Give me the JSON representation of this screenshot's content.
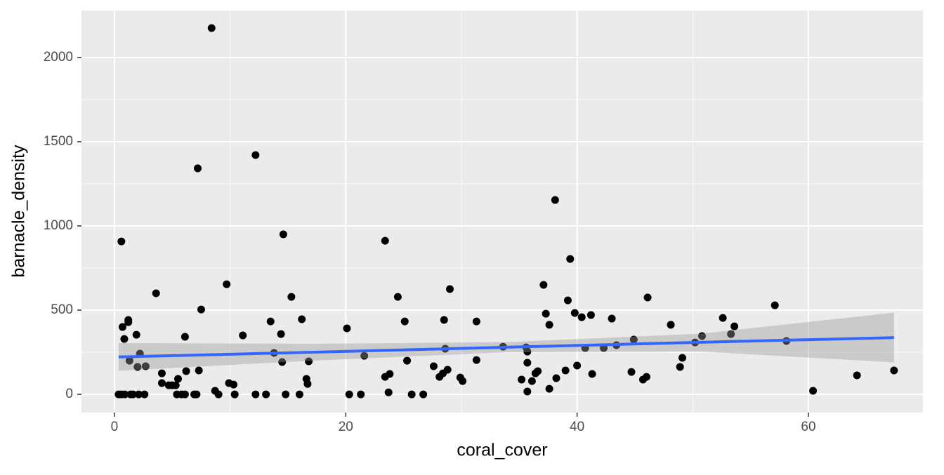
{
  "chart_data": {
    "type": "scatter",
    "x_label": "coral_cover",
    "y_label": "barnacle_density",
    "xlim": [
      -2.85,
      69.9
    ],
    "ylim": [
      -108,
      2279
    ],
    "xticks": [
      0,
      20,
      40,
      60
    ],
    "yticks": [
      0,
      500,
      1000,
      1500,
      2000
    ],
    "xminor": [
      10,
      30,
      50
    ],
    "yminor": [
      250,
      750,
      1250,
      1750
    ],
    "grid": true,
    "color": "#000000",
    "x": [
      0.36,
      0.6,
      0.9,
      1.4,
      1.6,
      2.1,
      2.6,
      0.6,
      0.7,
      0.85,
      1.2,
      1.2,
      1.3,
      1.9,
      2.0,
      2.2,
      2.7,
      3.6,
      4.1,
      4.1,
      4.7,
      5.0,
      5.3,
      5.5,
      5.4,
      5.8,
      6.1,
      6.1,
      6.2,
      6.9,
      7.1,
      7.2,
      7.3,
      7.5,
      8.4,
      8.7,
      9.0,
      9.7,
      9.9,
      10.3,
      10.4,
      11.1,
      12.2,
      12.2,
      13.1,
      13.5,
      13.8,
      14.4,
      14.6,
      14.5,
      14.8,
      15.3,
      16.0,
      16.2,
      16.6,
      16.7,
      16.8,
      20.1,
      20.3,
      21.3,
      21.6,
      23.4,
      23.4,
      23.8,
      23.7,
      24.5,
      25.1,
      25.3,
      25.7,
      26.7,
      27.6,
      28.1,
      28.4,
      28.5,
      28.6,
      28.8,
      29.0,
      29.9,
      30.1,
      31.3,
      31.3,
      33.6,
      35.2,
      35.6,
      35.7,
      35.7,
      35.7,
      36.1,
      36.4,
      36.6,
      37.1,
      37.3,
      37.6,
      37.6,
      38.1,
      38.2,
      39.0,
      39.2,
      39.4,
      39.8,
      40.0,
      40.4,
      40.7,
      41.2,
      41.3,
      42.3,
      43.0,
      43.4,
      44.7,
      44.9,
      45.7,
      46.0,
      46.1,
      48.1,
      48.9,
      49.1,
      50.2,
      50.8,
      52.6,
      53.3,
      53.6,
      57.1,
      58.1,
      60.4,
      64.2,
      67.4
    ],
    "values": [
      0,
      0,
      0,
      0,
      0,
      0,
      0,
      908,
      400,
      329,
      442,
      429,
      200,
      354,
      163,
      242,
      167,
      600,
      125,
      67,
      54,
      54,
      54,
      92,
      0,
      0,
      0,
      342,
      138,
      0,
      0,
      1342,
      142,
      504,
      2175,
      21,
      0,
      654,
      67,
      58,
      0,
      350,
      1421,
      0,
      0,
      433,
      246,
      358,
      950,
      192,
      0,
      579,
      0,
      446,
      92,
      62,
      196,
      392,
      0,
      0,
      229,
      912,
      104,
      121,
      12,
      579,
      433,
      200,
      0,
      0,
      167,
      104,
      125,
      442,
      271,
      146,
      625,
      100,
      79,
      204,
      433,
      283,
      88,
      279,
      254,
      188,
      17,
      79,
      125,
      138,
      650,
      479,
      33,
      413,
      1154,
      96,
      142,
      558,
      804,
      483,
      171,
      458,
      275,
      471,
      121,
      275,
      450,
      292,
      133,
      325,
      88,
      104,
      575,
      413,
      163,
      217,
      308,
      346,
      454,
      358,
      404,
      529,
      317,
      21,
      113,
      142
    ],
    "smooth": {
      "color": "#3366ff",
      "band_color": "#999999",
      "x": [
        0.36,
        17,
        33.9,
        50.6,
        67.4
      ],
      "values": [
        222,
        250,
        280,
        309,
        337
      ],
      "lower": [
        140,
        200,
        250,
        255,
        190
      ],
      "upper": [
        305,
        300,
        310,
        360,
        485
      ]
    }
  }
}
